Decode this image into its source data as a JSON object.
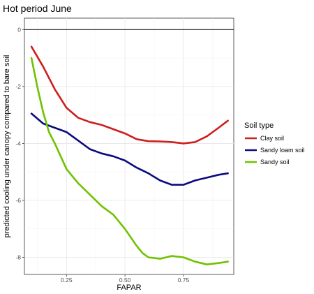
{
  "chart_data": {
    "type": "line",
    "title": "Hot period June",
    "xlabel": "FAPAR",
    "ylabel": "predicted cooling under canopy compared to bare soil",
    "xlim": [
      0.07,
      0.965
    ],
    "ylim": [
      -8.6,
      0.4
    ],
    "x_ticks": [
      0.25,
      0.5,
      0.75
    ],
    "x_tick_labels": [
      "0.25",
      "0.50",
      "0.75"
    ],
    "y_ticks": [
      0,
      -2,
      -4,
      -6,
      -8
    ],
    "y_tick_labels": [
      "0",
      "-2",
      "-4",
      "-6",
      "-8"
    ],
    "reference_line": 0,
    "grid": true,
    "legend": {
      "title": "Soil type",
      "position": "right"
    },
    "series": [
      {
        "name": "Clay soil",
        "color": "#cc1f1f",
        "x": [
          0.1,
          0.15,
          0.2,
          0.25,
          0.3,
          0.35,
          0.4,
          0.45,
          0.5,
          0.55,
          0.6,
          0.65,
          0.7,
          0.75,
          0.8,
          0.85,
          0.9,
          0.94
        ],
        "y": [
          -0.6,
          -1.3,
          -2.1,
          -2.75,
          -3.1,
          -3.25,
          -3.35,
          -3.5,
          -3.65,
          -3.85,
          -3.92,
          -3.93,
          -3.95,
          -4.0,
          -3.95,
          -3.75,
          -3.45,
          -3.2
        ]
      },
      {
        "name": "Sandy loam soil",
        "color": "#0b0b80",
        "x": [
          0.1,
          0.15,
          0.2,
          0.25,
          0.3,
          0.35,
          0.4,
          0.45,
          0.5,
          0.55,
          0.6,
          0.65,
          0.7,
          0.75,
          0.8,
          0.85,
          0.9,
          0.94
        ],
        "y": [
          -2.95,
          -3.3,
          -3.45,
          -3.6,
          -3.9,
          -4.2,
          -4.35,
          -4.45,
          -4.6,
          -4.85,
          -5.05,
          -5.3,
          -5.45,
          -5.45,
          -5.3,
          -5.2,
          -5.1,
          -5.05
        ]
      },
      {
        "name": "Sandy soil",
        "color": "#6fc200",
        "x": [
          0.1,
          0.125,
          0.15,
          0.175,
          0.2,
          0.25,
          0.3,
          0.35,
          0.4,
          0.45,
          0.5,
          0.55,
          0.575,
          0.6,
          0.65,
          0.7,
          0.75,
          0.8,
          0.85,
          0.9,
          0.94
        ],
        "y": [
          -1.0,
          -2.0,
          -2.9,
          -3.6,
          -4.0,
          -4.9,
          -5.4,
          -5.8,
          -6.2,
          -6.5,
          -7.0,
          -7.6,
          -7.85,
          -8.0,
          -8.05,
          -7.95,
          -8.0,
          -8.15,
          -8.25,
          -8.2,
          -8.15
        ]
      }
    ]
  }
}
